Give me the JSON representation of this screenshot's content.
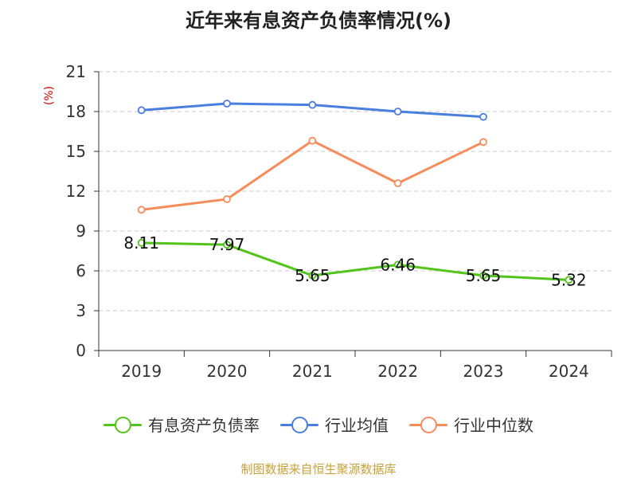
{
  "chart_data": {
    "type": "line",
    "title": "近年来有息资产负债率情况(%)",
    "ylabel": "(%)",
    "xlabel": "",
    "categories": [
      "2019",
      "2020",
      "2021",
      "2022",
      "2023",
      "2024"
    ],
    "ylim": [
      0,
      21
    ],
    "yticks": [
      0,
      3,
      6,
      9,
      12,
      15,
      18,
      21
    ],
    "grid": true,
    "legend_position": "bottom",
    "series": [
      {
        "name": "有息资产负债率",
        "color": "#52c41a",
        "values": [
          8.11,
          7.97,
          5.65,
          6.46,
          5.65,
          5.32
        ],
        "labels": [
          "8.11",
          "7.97",
          "5.65",
          "6.46",
          "5.65",
          "5.32"
        ]
      },
      {
        "name": "行业均值",
        "color": "#4a7fe0",
        "values": [
          18.1,
          18.6,
          18.5,
          18.0,
          17.6,
          null
        ]
      },
      {
        "name": "行业中位数",
        "color": "#f58c5a",
        "values": [
          10.6,
          11.4,
          15.8,
          12.6,
          15.7,
          null
        ]
      }
    ]
  },
  "footer": {
    "source": "制图数据来自恒生聚源数据库"
  }
}
